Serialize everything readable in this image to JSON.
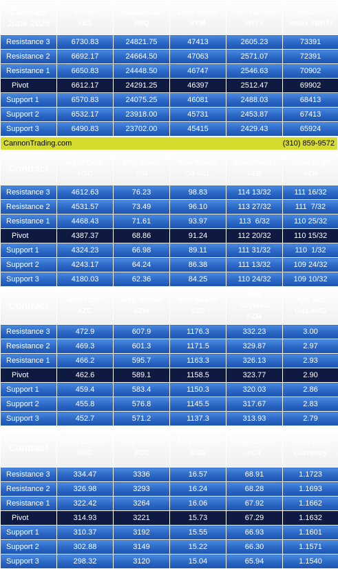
{
  "banner": {
    "site": "CannonTrading.com",
    "phone": "(310) 859-9572"
  },
  "sections": [
    {
      "header": {
        "corner": [
          "Contract",
          "June 2026"
        ],
        "columns": [
          [
            "SP500",
            "#ES"
          ],
          [
            "Nasdaq100",
            "#NQ"
          ],
          [
            "Dow Jones",
            "#YM"
          ],
          [
            "Mini Russell",
            "#RTY"
          ],
          [
            "BitCoin",
            "Index #BRTI"
          ]
        ]
      },
      "rows": [
        {
          "label": "Resistance 3",
          "values": [
            "6730.83",
            "24821.75",
            "47413",
            "2605.23",
            "73391"
          ]
        },
        {
          "label": "Resistance 2",
          "values": [
            "6692.17",
            "24664.50",
            "47063",
            "2571.07",
            "72391"
          ]
        },
        {
          "label": "Resistance 1",
          "values": [
            "6650.83",
            "24448.50",
            "46747",
            "2546.63",
            "70902"
          ]
        },
        {
          "label": "Pivot",
          "values": [
            "6612.17",
            "24291.25",
            "46397",
            "2512.47",
            "69902"
          ]
        },
        {
          "label": "Support 1",
          "values": [
            "6570.83",
            "24075.25",
            "46081",
            "2488.03",
            "68413"
          ]
        },
        {
          "label": "Support 2",
          "values": [
            "6532.17",
            "23918.00",
            "45731",
            "2453.87",
            "67413"
          ]
        },
        {
          "label": "Support 3",
          "values": [
            "6490.83",
            "23702.00",
            "45415",
            "2429.43",
            "65924"
          ]
        }
      ]
    },
    {
      "header": {
        "corner": [
          "Contract"
        ],
        "columns": [
          [
            "April Gold",
            "#GC"
          ],
          [
            "May Silver",
            "#SI"
          ],
          [
            "May Crude",
            "Oil #CL"
          ],
          [
            "June Bonds",
            "#ZB"
          ],
          [
            "June 10 yr",
            "#ZN"
          ]
        ]
      },
      "rows": [
        {
          "label": "Resistance 3",
          "values": [
            "4612.63",
            "76.23",
            "98.83",
            "114 13/32",
            "111 16/32"
          ]
        },
        {
          "label": "Resistance 2",
          "values": [
            "4531.57",
            "73.49",
            "96.10",
            "113 27/32",
            "111  7/32"
          ]
        },
        {
          "label": "Resistance 1",
          "values": [
            "4468.43",
            "71.61",
            "93.97",
            "113  6/32",
            "110 25/32"
          ]
        },
        {
          "label": "Pivot",
          "values": [
            "4387.37",
            "68.86",
            "91.24",
            "112 20/32",
            "110 15/32"
          ]
        },
        {
          "label": "Support 1",
          "values": [
            "4324.23",
            "66.98",
            "89.11",
            "111 31/32",
            "110  1/32"
          ]
        },
        {
          "label": "Support 2",
          "values": [
            "4243.17",
            "64.24",
            "86.38",
            "111 13/32",
            "109 24/32"
          ]
        },
        {
          "label": "Support 3",
          "values": [
            "4180.03",
            "62.36",
            "84.25",
            "110 24/32",
            "109 10/32"
          ]
        }
      ]
    },
    {
      "header": {
        "corner": [
          "Contract"
        ],
        "columns": [
          [
            "May Corn",
            "#ZC"
          ],
          [
            "May  Wheat",
            "#ZW"
          ],
          [
            "May Beans",
            "#ZS"
          ],
          [
            "May",
            "SoyMeal",
            "#ZM"
          ],
          [
            "Apr. Nat",
            "Gas #NG"
          ]
        ]
      },
      "rows": [
        {
          "label": "Resistance 3",
          "values": [
            "472.9",
            "607.9",
            "1176.3",
            "332.23",
            "3.00"
          ]
        },
        {
          "label": "Resistance 2",
          "values": [
            "469.3",
            "601.3",
            "1171.5",
            "329.87",
            "2.97"
          ]
        },
        {
          "label": "Resistance 1",
          "values": [
            "466.2",
            "595.7",
            "1163.3",
            "326.13",
            "2.93"
          ]
        },
        {
          "label": "Pivot",
          "values": [
            "462.6",
            "589.1",
            "1158.5",
            "323.77",
            "2.90"
          ]
        },
        {
          "label": "Support 1",
          "values": [
            "459.4",
            "583.4",
            "1150.3",
            "320.03",
            "2.86"
          ]
        },
        {
          "label": "Support 2",
          "values": [
            "455.8",
            "576.8",
            "1145.5",
            "317.67",
            "2.83"
          ]
        },
        {
          "label": "Support 3",
          "values": [
            "452.7",
            "571.2",
            "1137.3",
            "313.93",
            "2.79"
          ]
        }
      ]
    },
    {
      "header": {
        "corner": [
          "Contract"
        ],
        "columns": [
          [
            "May Coffee",
            "#KC"
          ],
          [
            "May Cocoa",
            "#CC"
          ],
          [
            "May. Sugar",
            "#SB"
          ],
          [
            "May Cotton",
            "#CT"
          ],
          [
            "June Euro",
            "Currency"
          ]
        ]
      },
      "rows": [
        {
          "label": "Resistance 3",
          "values": [
            "334.47",
            "3336",
            "16.57",
            "68.91",
            "1.1723"
          ]
        },
        {
          "label": "Resistance 2",
          "values": [
            "326.98",
            "3293",
            "16.24",
            "68.28",
            "1.1693"
          ]
        },
        {
          "label": "Resistance 1",
          "values": [
            "322.42",
            "3264",
            "16.06",
            "67.92",
            "1.1662"
          ]
        },
        {
          "label": "Pivot",
          "values": [
            "314.93",
            "3221",
            "15.73",
            "67.29",
            "1.1632"
          ]
        },
        {
          "label": "Support 1",
          "values": [
            "310.37",
            "3192",
            "15.55",
            "66.93",
            "1.1601"
          ]
        },
        {
          "label": "Support 2",
          "values": [
            "302.88",
            "3149",
            "15.22",
            "66.30",
            "1.1571"
          ]
        },
        {
          "label": "Support 3",
          "values": [
            "298.32",
            "3120",
            "15.04",
            "65.94",
            "1.1540"
          ]
        }
      ]
    }
  ]
}
